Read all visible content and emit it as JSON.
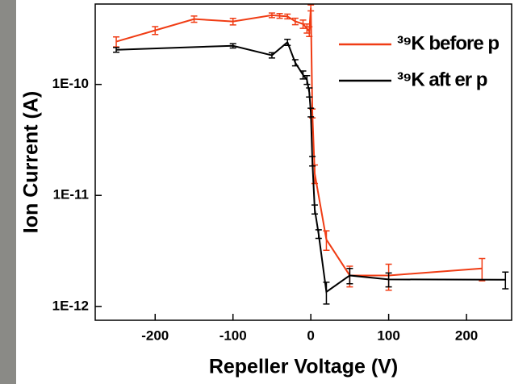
{
  "chart_data": {
    "type": "line",
    "xlabel": "Repeller Voltage (V)",
    "ylabel": "Ion Current (A)",
    "xlim": [
      -277,
      258
    ],
    "xticks": [
      -200,
      -100,
      0,
      100,
      200
    ],
    "ylim": [
      7.5e-13,
      5.3e-10
    ],
    "yscale": "log",
    "yticks": [
      {
        "value": 1e-12,
        "label": "1E-12"
      },
      {
        "value": 1e-11,
        "label": "1E-11"
      },
      {
        "value": 1e-10,
        "label": "1E-10"
      }
    ],
    "legend": "upper right",
    "series": [
      {
        "name": "³⁹K before p",
        "color": "#f03c14",
        "x": [
          -250,
          -200,
          -150,
          -100,
          -50,
          -40,
          -30,
          -20,
          -10,
          -5,
          -2,
          0,
          2,
          5,
          20,
          50,
          100,
          220
        ],
        "values": [
          2.43e-10,
          3.07e-10,
          3.88e-10,
          3.69e-10,
          4.2e-10,
          4.15e-10,
          4.1e-10,
          3.7e-10,
          3.5e-10,
          3.2e-10,
          3e-10,
          4.9e-10,
          5.5e-11,
          1.58e-11,
          4e-12,
          1.9e-12,
          1.9e-12,
          2.2e-12
        ],
        "errors": [
          2.5e-11,
          2.5e-11,
          2.5e-11,
          2.5e-11,
          2e-11,
          2e-11,
          2e-11,
          2.5e-11,
          3e-11,
          3e-11,
          3e-11,
          3e-11,
          5e-12,
          3e-12,
          8e-13,
          4e-13,
          5e-13,
          5e-13
        ]
      },
      {
        "name": "³⁹K aft   er p",
        "color": "#000000",
        "x": [
          -250,
          -100,
          -50,
          -30,
          -20,
          -10,
          -5,
          -2,
          0,
          2,
          5,
          10,
          20,
          50,
          100,
          250
        ],
        "values": [
          2.05e-10,
          2.23e-10,
          1.83e-10,
          2.4e-10,
          1.57e-10,
          1.22e-10,
          1.1e-10,
          8.5e-11,
          5.6e-11,
          2.04e-11,
          7.5e-12,
          4.5e-12,
          1.35e-12,
          1.9e-12,
          1.75e-12,
          1.74e-12
        ],
        "errors": [
          1e-11,
          1e-11,
          1e-11,
          1.5e-11,
          1e-11,
          1e-11,
          1e-11,
          8e-12,
          5e-12,
          2e-12,
          7e-13,
          4e-13,
          3e-13,
          3e-13,
          2.5e-13,
          3e-13
        ]
      }
    ]
  }
}
